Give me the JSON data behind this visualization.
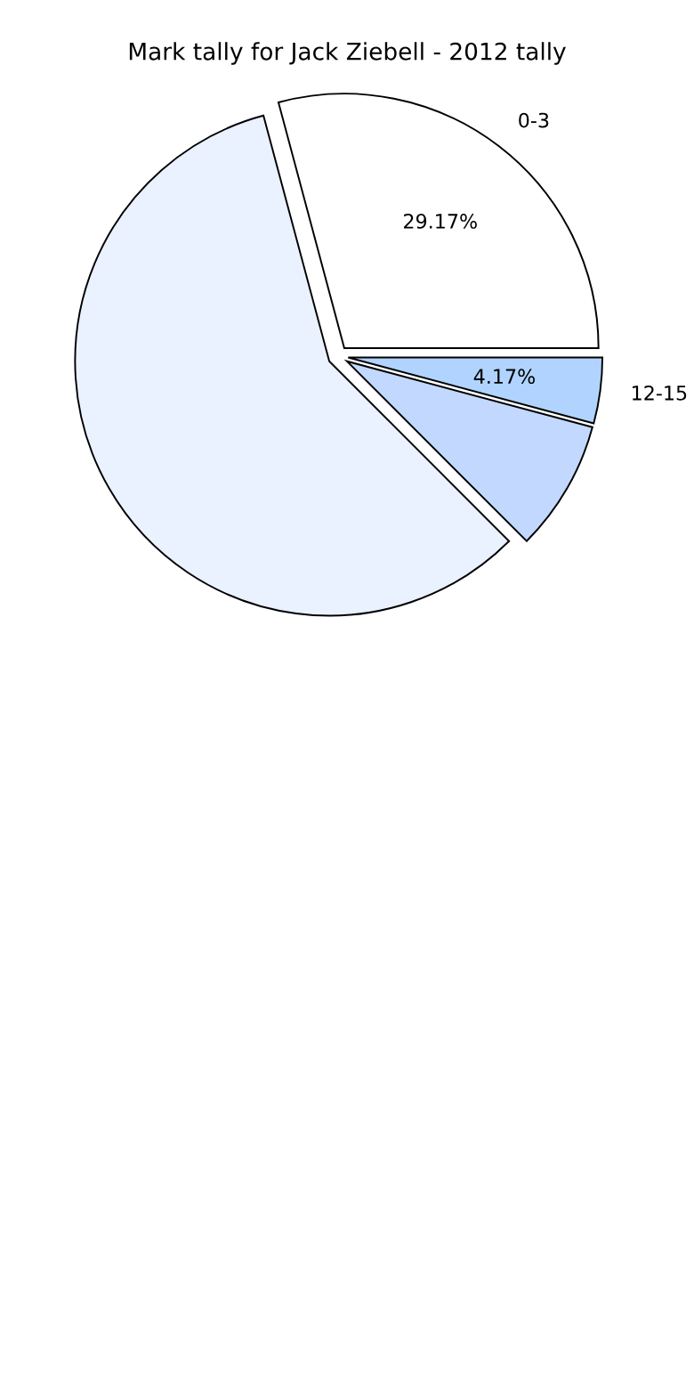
{
  "chart_data": {
    "type": "pie",
    "title": "Mark tally for Jack Ziebell - 2012 tally",
    "categories": [
      "0-3",
      null,
      null,
      "12-15"
    ],
    "values": [
      29.17,
      58.33,
      8.33,
      4.17
    ],
    "value_labels": [
      "29.17%",
      null,
      null,
      "4.17%"
    ],
    "colors": [
      "#ffffff",
      "#eaf1ff",
      "#c2d8ff",
      "#b0d4ff"
    ],
    "legend": false
  }
}
